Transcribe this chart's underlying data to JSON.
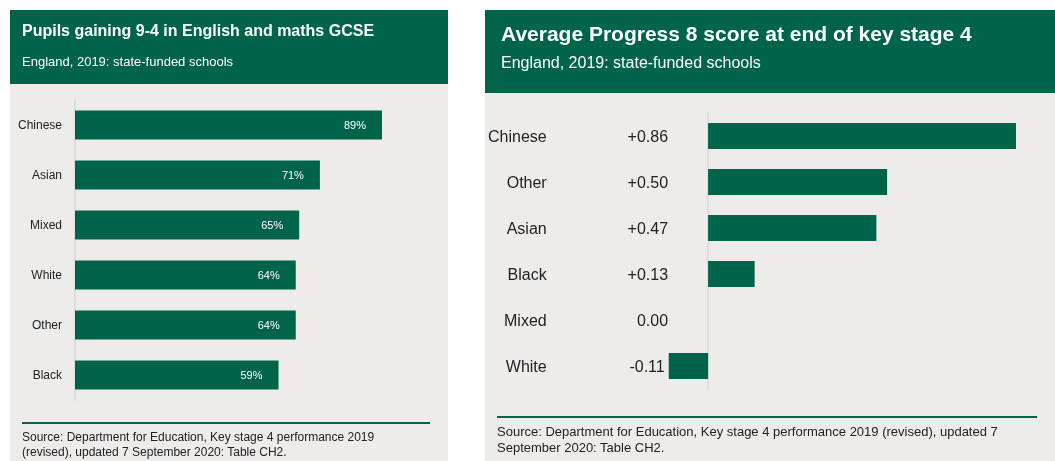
{
  "chart_data": [
    {
      "type": "bar",
      "orientation": "horizontal",
      "title": "Pupils gaining 9-4 in English and maths GCSE",
      "subtitle": "England, 2019: state-funded schools",
      "categories": [
        "Chinese",
        "Asian",
        "Mixed",
        "White",
        "Other",
        "Black"
      ],
      "values": [
        89,
        71,
        65,
        64,
        64,
        59
      ],
      "value_labels": [
        "89%",
        "71%",
        "65%",
        "64%",
        "64%",
        "59%"
      ],
      "color": "#00644a",
      "annotations": [
        "Source: Department for Education, Key stage 4 performance 2019 (revised), updated 7 September 2020: Table CH2."
      ]
    },
    {
      "type": "bar",
      "orientation": "horizontal",
      "title": "Average Progress 8 score at end of key stage 4",
      "subtitle": "England, 2019: state-funded schools",
      "categories": [
        "Chinese",
        "Other",
        "Asian",
        "Black",
        "Mixed",
        "White"
      ],
      "values": [
        0.86,
        0.5,
        0.47,
        0.13,
        0.0,
        -0.11
      ],
      "value_labels": [
        "+0.86",
        "+0.50",
        "+0.47",
        "+0.13",
        "0.00",
        "-0.11"
      ],
      "color": "#00644a",
      "annotations": [
        "Source: Department for Education, Key stage 4 performance 2019 (revised), updated 7 September 2020: Table CH2."
      ]
    }
  ]
}
